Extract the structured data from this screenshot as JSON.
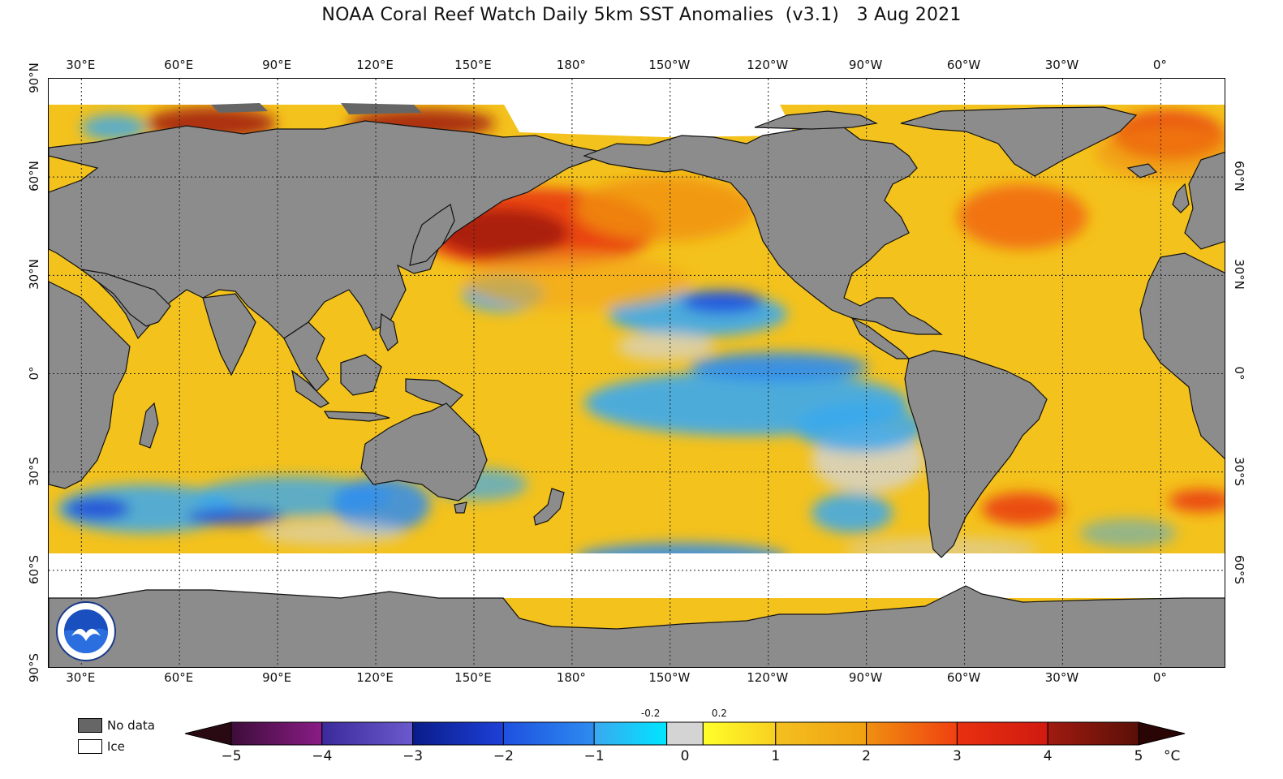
{
  "title": "NOAA Coral Reef Watch Daily 5km SST Anomalies  (v3.1)   3 Aug 2021",
  "map": {
    "lon_ticks": [
      {
        "label": "30°E",
        "lon": 30
      },
      {
        "label": "60°E",
        "lon": 60
      },
      {
        "label": "90°E",
        "lon": 90
      },
      {
        "label": "120°E",
        "lon": 120
      },
      {
        "label": "150°E",
        "lon": 150
      },
      {
        "label": "180°",
        "lon": 180
      },
      {
        "label": "150°W",
        "lon": 210
      },
      {
        "label": "120°W",
        "lon": 240
      },
      {
        "label": "90°W",
        "lon": 270
      },
      {
        "label": "60°W",
        "lon": 300
      },
      {
        "label": "30°W",
        "lon": 330
      },
      {
        "label": "0°",
        "lon": 360
      }
    ],
    "lat_ticks_left": [
      {
        "label": "90°N",
        "lat": 90
      },
      {
        "label": "60°N",
        "lat": 60
      },
      {
        "label": "30°N",
        "lat": 30
      },
      {
        "label": "0°",
        "lat": 0
      },
      {
        "label": "30°S",
        "lat": -30
      },
      {
        "label": "60°S",
        "lat": -60
      },
      {
        "label": "90°S",
        "lat": -90
      }
    ],
    "lat_ticks_right": [
      {
        "label": "60°N",
        "lat": 60
      },
      {
        "label": "30°N",
        "lat": 30
      },
      {
        "label": "0°",
        "lat": 0
      },
      {
        "label": "30°S",
        "lat": -30
      },
      {
        "label": "60°S",
        "lat": -60
      }
    ],
    "lon_range": [
      20,
      380
    ],
    "lat_range": [
      -90,
      90
    ],
    "ocean_base_color": "#f4c21c",
    "land_color": "#8c8c8c",
    "ice_color": "#ffffff"
  },
  "legend_key": [
    {
      "label": "No data",
      "color": "#666666"
    },
    {
      "label": "Ice",
      "color": "#ffffff"
    }
  ],
  "colorbar": {
    "ticks": [
      "−5",
      "−4",
      "−3",
      "−2",
      "−1",
      "0",
      "1",
      "2",
      "3",
      "4",
      "5"
    ],
    "small_labels": [
      "-0.2",
      "0.2"
    ],
    "unit": "°C",
    "low_end_color": "#2a0a12",
    "high_end_color": "#2a0505",
    "segments": [
      {
        "from": -5,
        "to": -4,
        "c1": "#3d0d3a",
        "c2": "#8a1c86"
      },
      {
        "from": -4,
        "to": -3,
        "c1": "#3a2a9a",
        "c2": "#6a5acd"
      },
      {
        "from": -3,
        "to": -2,
        "c1": "#0a1c8a",
        "c2": "#1e40d8"
      },
      {
        "from": -2,
        "to": -1,
        "c1": "#1e50e0",
        "c2": "#2d8cf0"
      },
      {
        "from": -1,
        "to": -0.2,
        "c1": "#3aa8f0",
        "c2": "#00e6ff"
      },
      {
        "from": -0.2,
        "to": 0.2,
        "c1": "#d4d4d4",
        "c2": "#d4d4d4"
      },
      {
        "from": 0.2,
        "to": 1,
        "c1": "#ffff2a",
        "c2": "#f8d020"
      },
      {
        "from": 1,
        "to": 2,
        "c1": "#f4c020",
        "c2": "#f0a010"
      },
      {
        "from": 2,
        "to": 3,
        "c1": "#f09010",
        "c2": "#f04010"
      },
      {
        "from": 3,
        "to": 4,
        "c1": "#e83010",
        "c2": "#d01a10"
      },
      {
        "from": 4,
        "to": 5,
        "c1": "#a01a10",
        "c2": "#5a1008"
      }
    ]
  }
}
